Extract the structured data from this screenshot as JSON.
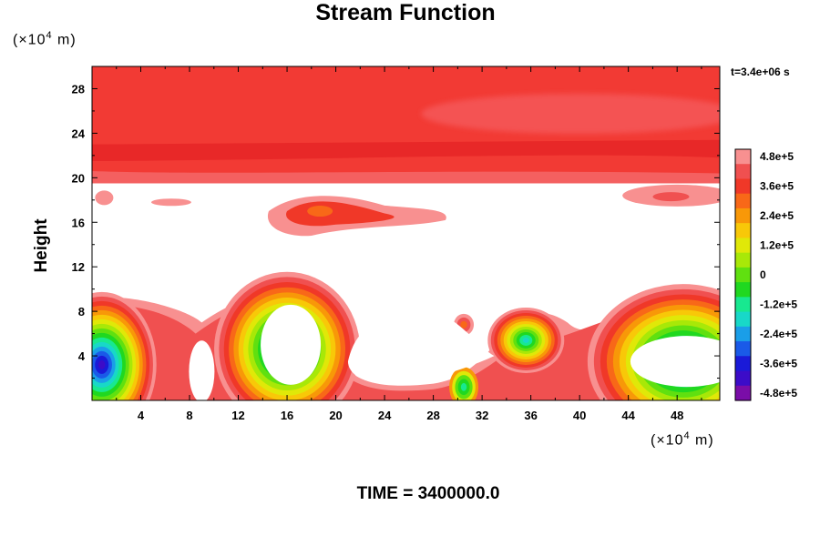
{
  "chart_data": {
    "type": "heatmap",
    "title": "Stream Function",
    "ylabel": "Height",
    "ylabel_units": "(×10",
    "xlabel_units": "(×10",
    "units_exp": "4",
    "units_m": "m)",
    "time_stamp": "t=3.4e+06 s",
    "footer": "TIME = 3400000.0",
    "xlim": [
      0,
      51.5
    ],
    "ylim": [
      0,
      30
    ],
    "x_ticks": [
      "4",
      "8",
      "12",
      "16",
      "20",
      "24",
      "28",
      "32",
      "36",
      "40",
      "44",
      "48"
    ],
    "x_tick_values": [
      4,
      8,
      12,
      16,
      20,
      24,
      28,
      32,
      36,
      40,
      44,
      48
    ],
    "y_ticks": [
      "4",
      "8",
      "12",
      "16",
      "20",
      "24",
      "28"
    ],
    "y_tick_values": [
      4,
      8,
      12,
      16,
      20,
      24,
      28
    ],
    "colorbar": {
      "labels": [
        "4.8e+5",
        "3.6e+5",
        "2.4e+5",
        "1.2e+5",
        "0",
        "-1.2e+5",
        "-2.4e+5",
        "-3.6e+5",
        "-4.8e+5"
      ],
      "min": -480000,
      "max": 480000,
      "colors": [
        "#7a0da8",
        "#3c0cc8",
        "#1a1ad8",
        "#1a5ae8",
        "#1a9ee8",
        "#18d8c8",
        "#18e890",
        "#20d820",
        "#60e010",
        "#a8e808",
        "#e0e808",
        "#f8c808",
        "#f89808",
        "#f86818",
        "#f03828",
        "#f05050",
        "#f89090",
        "#ffffff"
      ]
    },
    "field_regions": [
      {
        "name": "upper-red-layer",
        "x": [
          0,
          51.5
        ],
        "y": [
          19.5,
          30
        ],
        "value": 420000
      },
      {
        "name": "upper-light-band",
        "x": [
          28,
          48
        ],
        "y": [
          24.5,
          27
        ],
        "value": 400000
      },
      {
        "name": "mid-left-patch",
        "x": [
          0,
          8
        ],
        "y": [
          17.5,
          19
        ],
        "value": 380000
      },
      {
        "name": "mid-positive-patch",
        "x": [
          15,
          29
        ],
        "y": [
          15,
          18.5
        ],
        "value": 360000
      },
      {
        "name": "mid-right-patch",
        "x": [
          44,
          51.5
        ],
        "y": [
          17.5,
          19.5
        ],
        "value": 380000
      },
      {
        "name": "lower-left-vortex",
        "x": [
          0,
          5
        ],
        "y": [
          1,
          6
        ],
        "value": -480000
      },
      {
        "name": "lower-vortex-14-18",
        "x": [
          12,
          20
        ],
        "y": [
          0.5,
          8.5
        ],
        "value": -420000
      },
      {
        "name": "small-vortex-30",
        "x": [
          29.5,
          31.5
        ],
        "y": [
          5.5,
          8
        ],
        "value": 200000
      },
      {
        "name": "lower-vortex-35",
        "x": [
          33,
          38
        ],
        "y": [
          3,
          8
        ],
        "value": -200000
      },
      {
        "name": "lower-right-vortex",
        "x": [
          43,
          51.5
        ],
        "y": [
          0.5,
          7
        ],
        "value": -480000
      }
    ]
  }
}
